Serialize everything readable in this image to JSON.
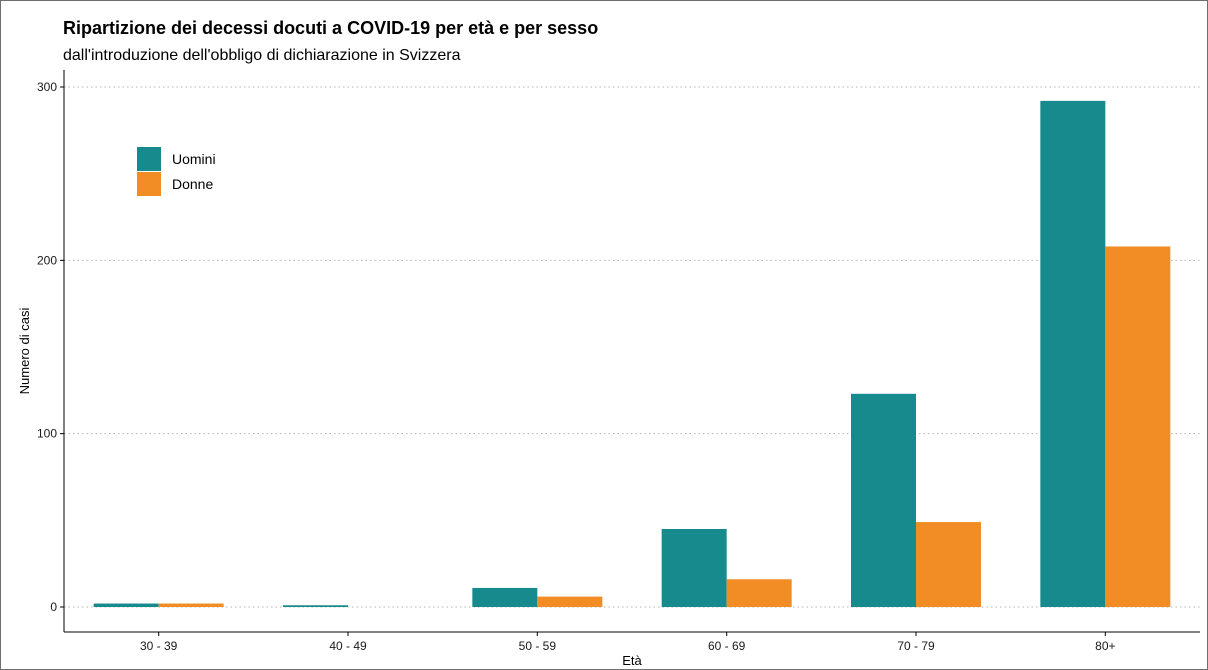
{
  "chart_data": {
    "type": "bar",
    "title": "Ripartizione dei decessi docuti a COVID-19 per età e per sesso",
    "subtitle": "dall'introduzione dell'obbligo di dichiarazione in Svizzera",
    "xlabel": "Età",
    "ylabel": "Numero di casi",
    "categories": [
      "30 - 39",
      "40 - 49",
      "50 - 59",
      "60 - 69",
      "70 - 79",
      "80+"
    ],
    "series": [
      {
        "name": "Uomini",
        "color": "#168a8c",
        "values": [
          2,
          1,
          11,
          45,
          123,
          292
        ]
      },
      {
        "name": "Donne",
        "color": "#f28c24",
        "values": [
          2,
          0,
          6,
          16,
          49,
          208
        ]
      }
    ],
    "ylim": [
      0,
      300
    ],
    "yticks": [
      0,
      100,
      200,
      300
    ],
    "grid": "horizontal dotted",
    "legend": "top-left"
  }
}
